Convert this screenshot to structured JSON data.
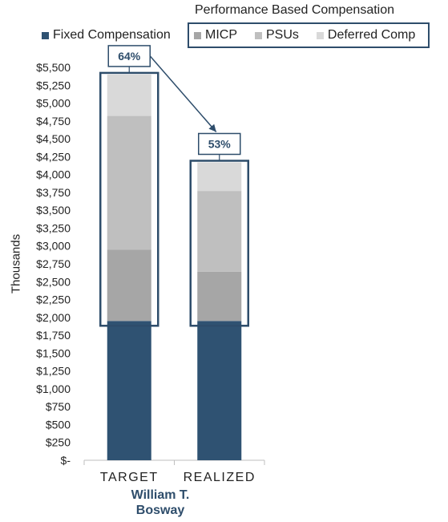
{
  "legend": {
    "title": "Performance Based Compensation",
    "fixed_label": "Fixed Compensation",
    "items": [
      {
        "label": "MICP",
        "color": "#a6a6a6"
      },
      {
        "label": "PSUs",
        "color": "#bfbfbf"
      },
      {
        "label": "Deferred Comp",
        "color": "#d9d9d9"
      }
    ]
  },
  "person": {
    "line1": "William T.",
    "line2": "Bosway"
  },
  "chart_data": {
    "type": "bar",
    "stacked": true,
    "categories": [
      "TARGET",
      "REALIZED"
    ],
    "series": [
      {
        "name": "Fixed Compensation",
        "color": "#2f5272",
        "values": [
          1950,
          1950
        ]
      },
      {
        "name": "MICP",
        "color": "#a6a6a6",
        "values": [
          1000,
          690
        ]
      },
      {
        "name": "PSUs",
        "color": "#bfbfbf",
        "values": [
          1870,
          1130
        ]
      },
      {
        "name": "Deferred Comp",
        "color": "#d9d9d9",
        "values": [
          580,
          400
        ]
      }
    ],
    "ylabel": "Thousands",
    "ylim": [
      0,
      5500
    ],
    "ytick_step": 250,
    "ytick_labels": [
      "$-",
      "$250",
      "$500",
      "$750",
      "$1,000",
      "$1,250",
      "$1,500",
      "$1,750",
      "$2,000",
      "$2,250",
      "$2,500",
      "$2,750",
      "$3,000",
      "$3,250",
      "$3,500",
      "$3,750",
      "$4,000",
      "$4,250",
      "$4,500",
      "$4,750",
      "$5,000",
      "$5,250",
      "$5,500"
    ],
    "annotations": [
      {
        "category": "TARGET",
        "label": "64%"
      },
      {
        "category": "REALIZED",
        "label": "53%"
      }
    ],
    "accent_color": "#2e4d6b"
  }
}
